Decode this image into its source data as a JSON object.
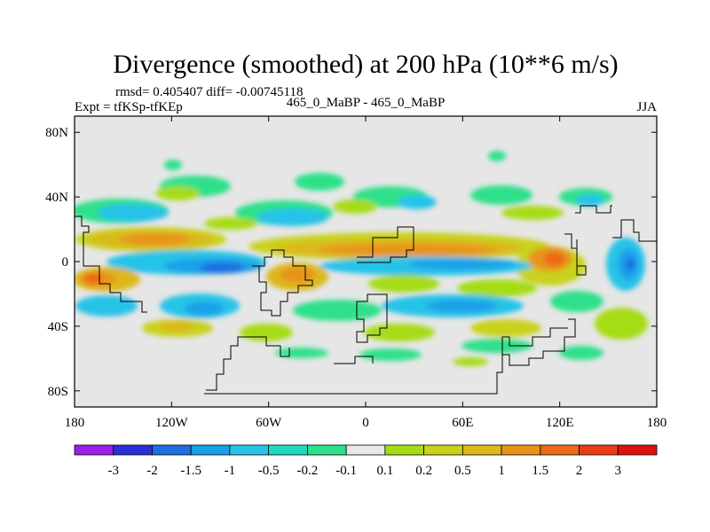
{
  "chart_data": {
    "type": "heatmap",
    "title": "Divergence (smoothed) at 200 hPa (10**6 m/s)",
    "stats_line": "rmsd= 0.405407 diff= -0.00745118",
    "experiment": "Expt = tfKSp-tfKEp",
    "case": "465_0_MaBP - 465_0_MaBP",
    "season": "JJA",
    "x_axis": {
      "range": [
        -180,
        180
      ],
      "ticks": [
        {
          "value": -180,
          "label": "180"
        },
        {
          "value": -120,
          "label": "120W"
        },
        {
          "value": -60,
          "label": "60W"
        },
        {
          "value": 0,
          "label": "0"
        },
        {
          "value": 60,
          "label": "60E"
        },
        {
          "value": 120,
          "label": "120E"
        },
        {
          "value": 180,
          "label": "180"
        }
      ]
    },
    "y_axis": {
      "range": [
        -90,
        90
      ],
      "ticks": [
        {
          "value": 80,
          "label": "80N"
        },
        {
          "value": 40,
          "label": "40N"
        },
        {
          "value": 0,
          "label": "0"
        },
        {
          "value": -40,
          "label": "40S"
        },
        {
          "value": -80,
          "label": "80S"
        }
      ]
    },
    "colorbar": {
      "boundary_labels": [
        "-3",
        "-2",
        "-1.5",
        "-1",
        "-0.5",
        "-0.2",
        "-0.1",
        "0.1",
        "0.2",
        "0.5",
        "1",
        "1.5",
        "2",
        "3"
      ],
      "colors": [
        "#9b1fe8",
        "#2a2fd8",
        "#1e6fe0",
        "#1aa0e8",
        "#28c3e8",
        "#22d8c0",
        "#2ee08a",
        "#e8e8e8",
        "#a6dc16",
        "#c8d21a",
        "#dcb81c",
        "#e8941a",
        "#ec6a18",
        "#e83c14",
        "#e01010"
      ]
    },
    "fields": [
      {
        "region": "north-pacific-band",
        "lon_range": [
          -180,
          -100
        ],
        "lat_range": [
          28,
          50
        ],
        "level": "-0.5 to -0.2"
      },
      {
        "region": "equatorial-east-pacific",
        "lon_range": [
          -175,
          -60
        ],
        "lat_range": [
          0,
          20
        ],
        "level": "0.5 to 1"
      },
      {
        "region": "east-pacific-south-min",
        "lon_range": [
          -110,
          -50
        ],
        "lat_range": [
          -15,
          0
        ],
        "level": "-1.5 to -1"
      },
      {
        "region": "west-pacific-southern-max",
        "lon_range": [
          -180,
          -150
        ],
        "lat_range": [
          -18,
          -5
        ],
        "level": "1.5 to 2"
      },
      {
        "region": "africa-indian-max",
        "lon_range": [
          0,
          120
        ],
        "lat_range": [
          0,
          15
        ],
        "level": "0.5 to 1"
      },
      {
        "region": "southern-indian-min",
        "lon_range": [
          0,
          110
        ],
        "lat_range": [
          -25,
          -5
        ],
        "level": "-0.5 to -0.2"
      },
      {
        "region": "west-pacific-max",
        "lon_range": [
          110,
          130
        ],
        "lat_range": [
          -8,
          8
        ],
        "level": "1.5 to 2"
      },
      {
        "region": "west-pacific-min",
        "lon_range": [
          160,
          180
        ],
        "lat_range": [
          -20,
          10
        ],
        "level": "-1.5 to -1"
      }
    ]
  }
}
